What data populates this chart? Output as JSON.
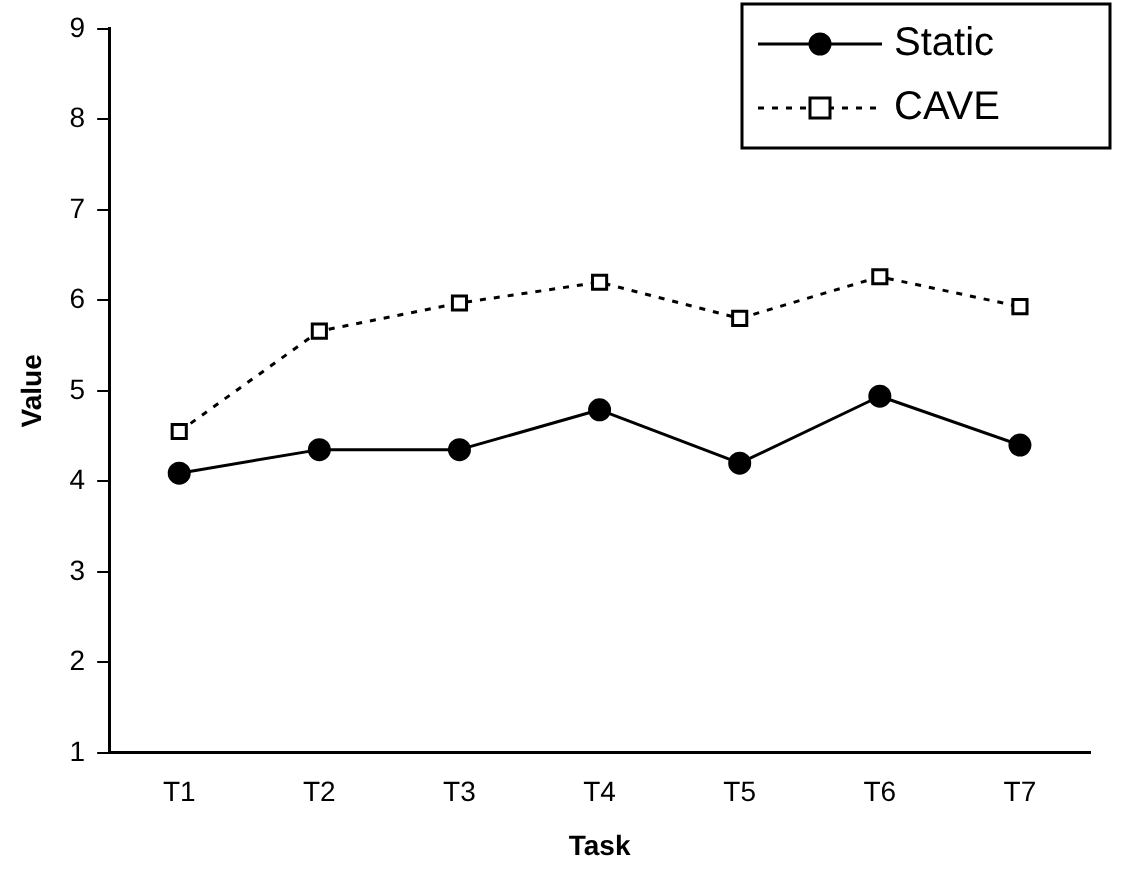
{
  "chart_data": {
    "type": "line",
    "xlabel": "Task",
    "ylabel": "Value",
    "categories": [
      "T1",
      "T2",
      "T3",
      "T4",
      "T5",
      "T6",
      "T7"
    ],
    "ylim": [
      1,
      9
    ],
    "yticks": [
      1,
      2,
      3,
      4,
      5,
      6,
      7,
      8,
      9
    ],
    "grid": false,
    "legend": "top right",
    "series": [
      {
        "name": "Static",
        "color": "#000000",
        "marker": "circle",
        "line_style": "solid",
        "values": [
          4.09,
          4.35,
          4.35,
          4.79,
          4.2,
          4.94,
          4.4
        ]
      },
      {
        "name": "CAVE",
        "color": "#000000",
        "marker": "square",
        "line_style": "dotted",
        "values": [
          4.55,
          5.66,
          5.97,
          6.2,
          5.8,
          6.26,
          5.93
        ]
      }
    ]
  }
}
